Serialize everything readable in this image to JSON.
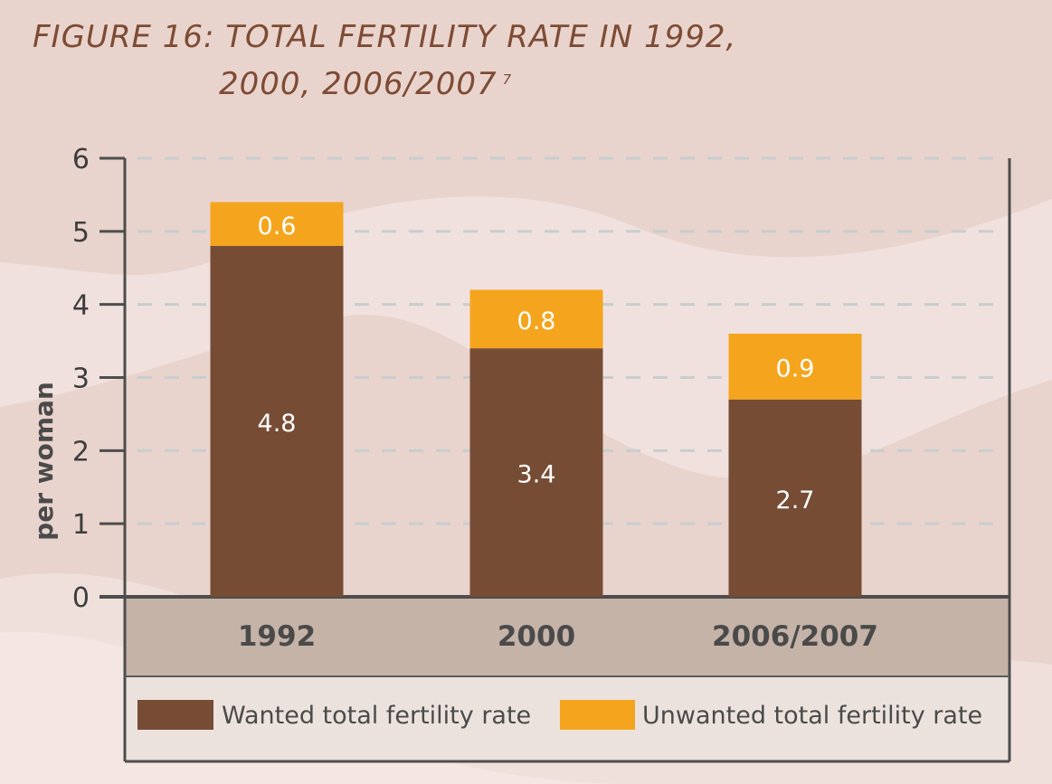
{
  "title": {
    "line1": "FIGURE 16: TOTAL FERTILITY RATE IN 1992,",
    "line2": "2000, 2006/2007",
    "footnote": "7"
  },
  "colors": {
    "wanted": "#764c34",
    "unwanted": "#f5a51d",
    "axis": "#4d4d4d",
    "grid": "#c8cdcf",
    "category_band": "#c5b3a7",
    "legend_band": "#ece2dd",
    "title": "#7d4b33"
  },
  "chart_data": {
    "type": "bar",
    "stacked": true,
    "categories": [
      "1992",
      "2000",
      "2006/2007"
    ],
    "series": [
      {
        "name": "Wanted total fertility rate",
        "values": [
          4.8,
          3.4,
          2.7
        ],
        "labels": [
          "4.8",
          "3.4",
          "2.7"
        ],
        "color": "#764c34"
      },
      {
        "name": "Unwanted total fertility rate",
        "values": [
          0.6,
          0.8,
          0.9
        ],
        "labels": [
          "0.6",
          "0.8",
          "0.9"
        ],
        "color": "#f5a51d"
      }
    ],
    "ylabel": "per woman",
    "ylim": [
      0,
      6
    ],
    "yticks": [
      "0",
      "1",
      "2",
      "3",
      "4",
      "5",
      "6"
    ],
    "grid": true,
    "legend_position": "bottom"
  }
}
